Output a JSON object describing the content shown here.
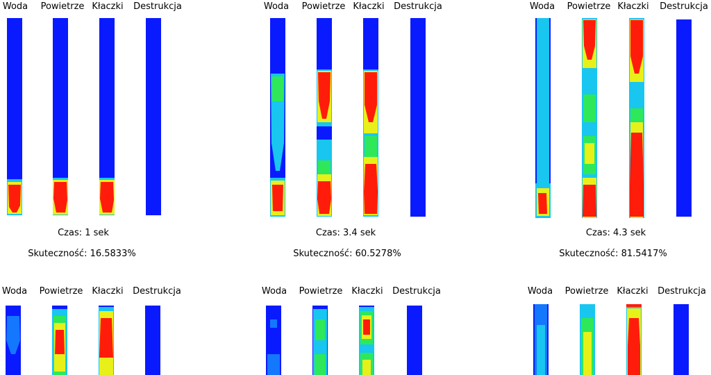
{
  "column_labels": [
    "Woda",
    "Powietrze",
    "Kłaczki",
    "Destrukcja"
  ],
  "colors": {
    "background_blue": "#0a1aff",
    "cyan": "#18c6f0",
    "green": "#2ee85a",
    "yellow": "#e8f01a",
    "red": "#ff1c0a"
  },
  "panels": [
    {
      "time": "Czas: 1 sek",
      "efficiency": "Skuteczność: 16.5833%"
    },
    {
      "time": "Czas: 3.4 sek",
      "efficiency": "Skuteczność: 60.5278%"
    },
    {
      "time": "Czas: 4.3 sek",
      "efficiency": "Skuteczność: 81.5417%"
    },
    {
      "time": "",
      "efficiency": ""
    },
    {
      "time": "",
      "efficiency": ""
    },
    {
      "time": "",
      "efficiency": ""
    }
  ]
}
